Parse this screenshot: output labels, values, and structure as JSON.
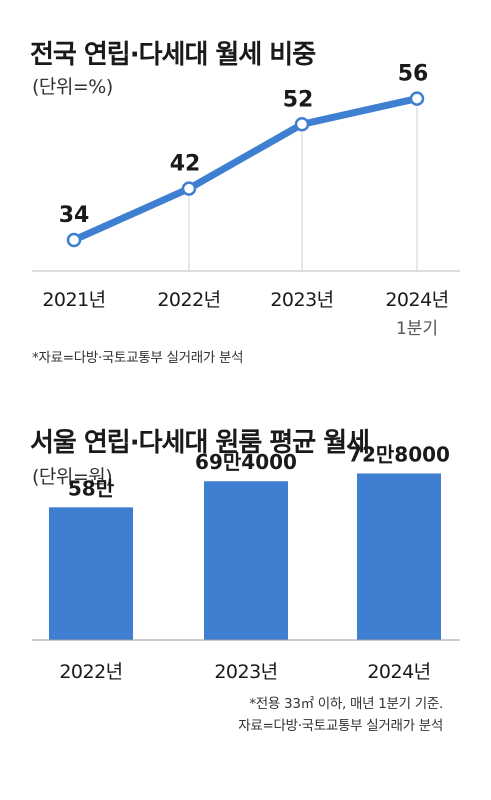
{
  "chart_data": [
    {
      "type": "line",
      "title": "전국 연립·다세대 월세 비중",
      "unit": "(단위=%)",
      "categories": [
        "2021년",
        "2022년",
        "2023년",
        "2024년"
      ],
      "category_sublabels": [
        "",
        "",
        "",
        "1분기"
      ],
      "values": [
        34,
        42,
        52,
        56
      ],
      "data_labels": [
        "34",
        "42",
        "52",
        "56"
      ],
      "ylim": [
        20,
        62
      ],
      "grid": false,
      "color": "#3f7fd1",
      "notes": [
        "*자료=다방·국토교통부 실거래가 분석"
      ]
    },
    {
      "type": "bar",
      "title": "서울 연립·다세대 원룸 평균 월세",
      "unit": "(단위=원)",
      "categories": [
        "2022년",
        "2023년",
        "2024년"
      ],
      "values": [
        580000,
        694000,
        728000
      ],
      "data_labels": [
        "58만",
        "69만4000",
        "72만8000"
      ],
      "ylim": [
        0,
        800000
      ],
      "grid": false,
      "color": "#3f7fd1",
      "notes": [
        "*전용 33㎡ 이하, 매년 1분기 기준.",
        "자료=다방·국토교통부 실거래가 분석"
      ]
    }
  ]
}
